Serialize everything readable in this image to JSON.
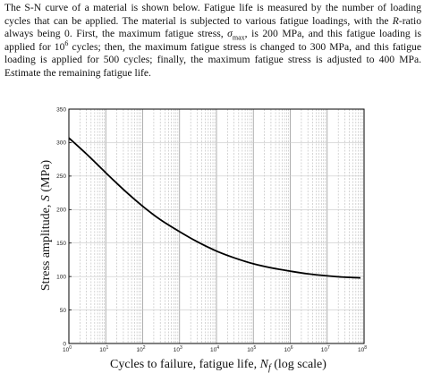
{
  "problem": {
    "p1": "The S-N curve of a material is shown below. Fatigue life is measured by the number of loading cycles that can be applied. The material is subjected to various fatigue loadings, with the ",
    "r_symbol": "R",
    "p2": "-ratio always being 0. First, the maximum fatigue stress, ",
    "sigma": "σ",
    "sigma_sub": "max",
    "p3": ", is 200 MPa, and this fatigue loading is applied for 10",
    "exp6": "6",
    "p4": " cycles; then, the maximum fatigue stress is changed to 300 MPa, and this fatigue loading is applied for 500 cycles; finally, the maximum fatigue stress is adjusted to 400 MPa. Estimate the remaining fatigue life."
  },
  "chart_data": {
    "type": "line",
    "x_scale": "log",
    "xlim": [
      1,
      100000000
    ],
    "ylim": [
      0,
      350
    ],
    "y_ticks": [
      "0",
      "50",
      "100",
      "150",
      "200",
      "250",
      "300",
      "350"
    ],
    "x_ticks": [
      {
        "base": "10",
        "exp": "0"
      },
      {
        "base": "10",
        "exp": "1"
      },
      {
        "base": "10",
        "exp": "2"
      },
      {
        "base": "10",
        "exp": "3"
      },
      {
        "base": "10",
        "exp": "4"
      },
      {
        "base": "10",
        "exp": "5"
      },
      {
        "base": "10",
        "exp": "6"
      },
      {
        "base": "10",
        "exp": "7"
      },
      {
        "base": "10",
        "exp": "8"
      }
    ],
    "grid": true,
    "ylabel": {
      "text": "Stress amplitude, ",
      "var": "S",
      "unit": " (MPa)"
    },
    "xlabel": {
      "text": "Cycles to failure, fatigue life, ",
      "var": "N",
      "sub": "f",
      "tail": " (log scale)"
    },
    "series": [
      {
        "x": [
          1,
          3,
          10,
          30,
          100,
          300,
          1000,
          3000,
          10000,
          30000,
          100000,
          300000,
          1000000,
          3000000,
          10000000,
          30000000,
          80000000
        ],
        "y": [
          307,
          283,
          255,
          230,
          205,
          185,
          167,
          152,
          138,
          128,
          119,
          113,
          108,
          104,
          101,
          99,
          98
        ]
      }
    ]
  }
}
